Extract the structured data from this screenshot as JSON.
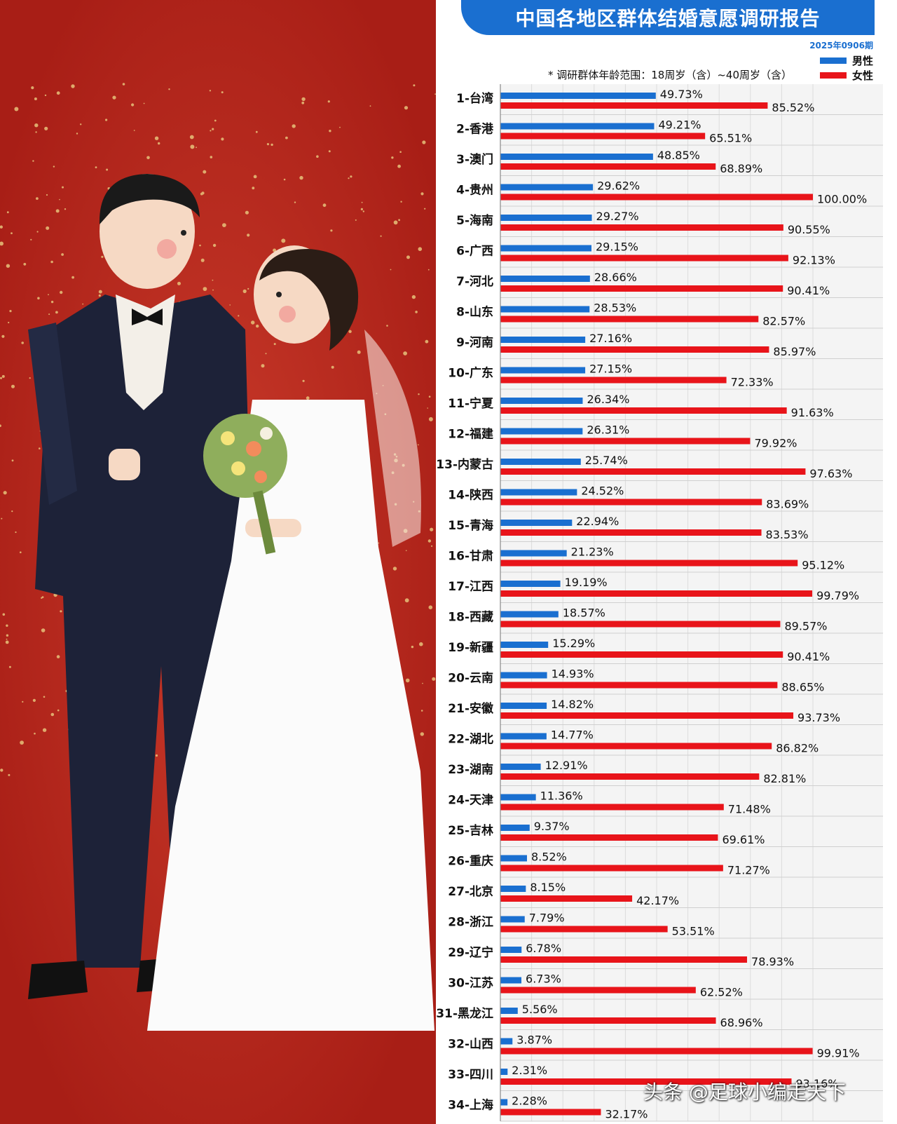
{
  "header": {
    "title": "中国各地区群体结婚意愿调研报告",
    "issue": "2025年0906期",
    "note": "* 调研群体年龄范围：18周岁（含）~40周岁（含）"
  },
  "legend": {
    "male_label": "男性",
    "female_label": "女性"
  },
  "colors": {
    "male": "#1a6fd0",
    "female": "#e8141a",
    "background_red": "#b3231a"
  },
  "watermark": "头条 @足球小编走天下",
  "chart_data": {
    "type": "bar",
    "orientation": "horizontal",
    "xlim": [
      0,
      100
    ],
    "grid": true,
    "legend_position": "top-right",
    "categories": [
      "1-台湾",
      "2-香港",
      "3-澳门",
      "4-贵州",
      "5-海南",
      "6-广西",
      "7-河北",
      "8-山东",
      "9-河南",
      "10-广东",
      "11-宁夏",
      "12-福建",
      "13-内蒙古",
      "14-陕西",
      "15-青海",
      "16-甘肃",
      "17-江西",
      "18-西藏",
      "19-新疆",
      "20-云南",
      "21-安徽",
      "22-湖北",
      "23-湖南",
      "24-天津",
      "25-吉林",
      "26-重庆",
      "27-北京",
      "28-浙江",
      "29-辽宁",
      "30-江苏",
      "31-黑龙江",
      "32-山西",
      "33-四川",
      "34-上海"
    ],
    "series": [
      {
        "name": "男性",
        "values": [
          49.73,
          49.21,
          48.85,
          29.62,
          29.27,
          29.15,
          28.66,
          28.53,
          27.16,
          27.15,
          26.34,
          26.31,
          25.74,
          24.52,
          22.94,
          21.23,
          19.19,
          18.57,
          15.29,
          14.93,
          14.82,
          14.77,
          12.91,
          11.36,
          9.37,
          8.52,
          8.15,
          7.79,
          6.78,
          6.73,
          5.56,
          3.87,
          2.31,
          2.28
        ],
        "labels": [
          "49.73%",
          "49.21%",
          "48.85%",
          "29.62%",
          "29.27%",
          "29.15%",
          "28.66%",
          "28.53%",
          "27.16%",
          "27.15%",
          "26.34%",
          "26.31%",
          "25.74%",
          "24.52%",
          "22.94%",
          "21.23%",
          "19.19%",
          "18.57%",
          "15.29%",
          "14.93%",
          "14.82%",
          "14.77%",
          "12.91%",
          "11.36%",
          "9.37%",
          "8.52%",
          "8.15%",
          "7.79%",
          "6.78%",
          "6.73%",
          "5.56%",
          "3.87%",
          "2.31%",
          "2.28%"
        ]
      },
      {
        "name": "女性",
        "values": [
          85.52,
          65.51,
          68.89,
          100.0,
          90.55,
          92.13,
          90.41,
          82.57,
          85.97,
          72.33,
          91.63,
          79.92,
          97.63,
          83.69,
          83.53,
          95.12,
          99.79,
          89.57,
          90.41,
          88.65,
          93.73,
          86.82,
          82.81,
          71.48,
          69.61,
          71.27,
          42.17,
          53.51,
          78.93,
          62.52,
          68.96,
          99.91,
          93.16,
          32.17
        ],
        "labels": [
          "85.52%",
          "65.51%",
          "68.89%",
          "100.00%",
          "90.55%",
          "92.13%",
          "90.41%",
          "82.57%",
          "85.97%",
          "72.33%",
          "91.63%",
          "79.92%",
          "97.63%",
          "83.69%",
          "83.53%",
          "95.12%",
          "99.79%",
          "89.57%",
          "90.41%",
          "88.65%",
          "93.73%",
          "86.82%",
          "82.81%",
          "71.48%",
          "69.61%",
          "71.27%",
          "42.17%",
          "53.51%",
          "78.93%",
          "62.52%",
          "68.96%",
          "99.91%",
          "93.16%",
          "32.17%"
        ]
      }
    ]
  }
}
